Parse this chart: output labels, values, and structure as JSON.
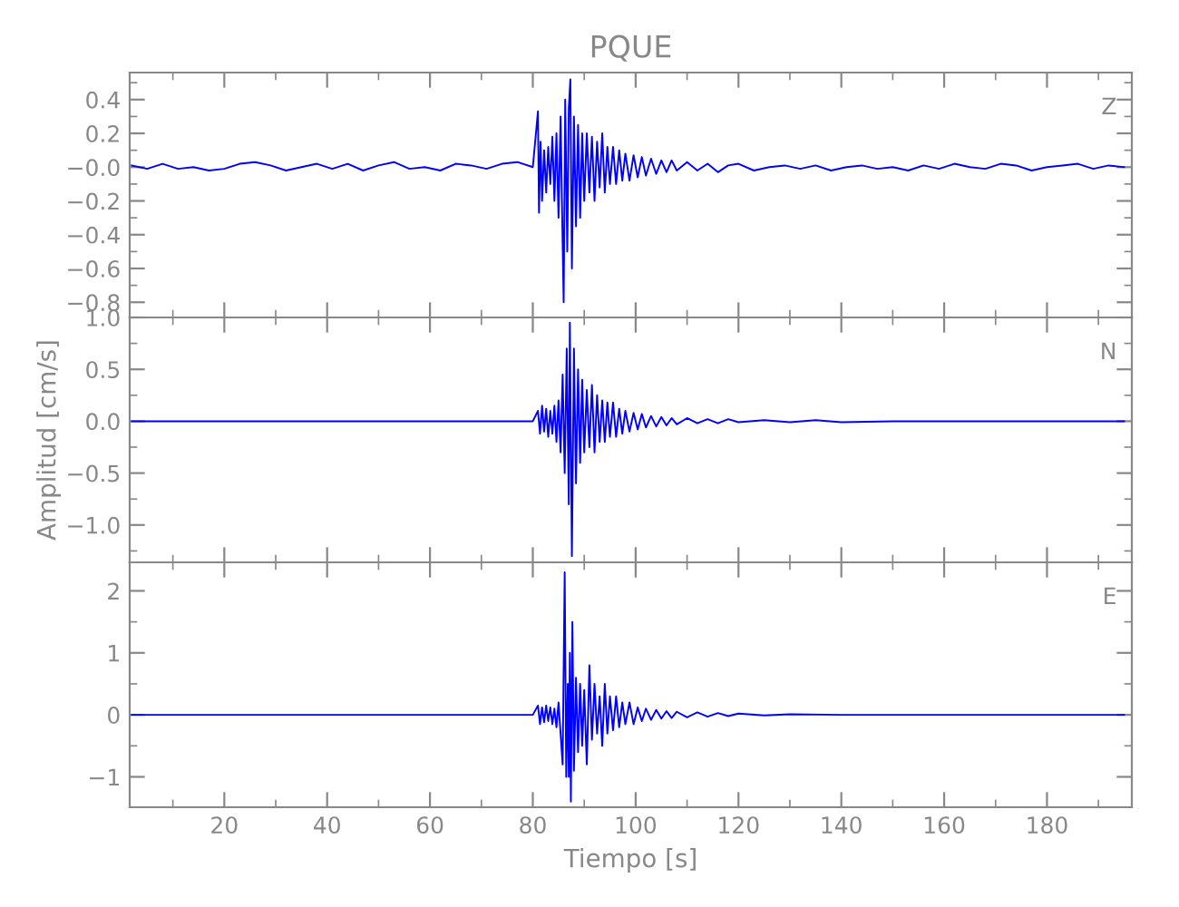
{
  "chart_data": [
    {
      "type": "line",
      "title": "PQUE",
      "annotations": [
        "Z"
      ],
      "xlim": [
        1.6,
        196.5
      ],
      "xticks": [
        20,
        40,
        60,
        80,
        100,
        120,
        140,
        160,
        180
      ],
      "ylim": [
        -0.89,
        0.56
      ],
      "yticks": [
        {
          "value": -0.8,
          "label": "−0.8"
        },
        {
          "value": -0.6,
          "label": "−0.6"
        },
        {
          "value": -0.4,
          "label": "−0.4"
        },
        {
          "value": -0.2,
          "label": "−0.2"
        },
        {
          "value": 0,
          "label": "−0.0"
        },
        {
          "value": 0.2,
          "label": "0.2"
        },
        {
          "value": 0.4,
          "label": "0.4"
        }
      ],
      "tick_labels": "y",
      "series": [
        {
          "color": "#0000ff",
          "x": [
            2,
            5,
            8,
            11,
            14,
            17,
            20,
            23,
            26,
            29,
            32,
            35,
            38,
            41,
            44,
            47,
            50,
            53,
            56,
            59,
            62,
            65,
            68,
            71,
            74,
            77,
            80,
            81.0,
            81.2,
            81.5,
            81.8,
            82.2,
            82.6,
            83.0,
            83.4,
            83.8,
            84.2,
            84.6,
            85.0,
            85.4,
            85.8,
            86.0,
            86.3,
            86.7,
            87.0,
            87.3,
            87.6,
            88.0,
            88.4,
            88.8,
            89.2,
            89.6,
            90.0,
            90.5,
            91.0,
            91.5,
            92.0,
            92.5,
            93.0,
            93.5,
            94.0,
            94.5,
            95.0,
            95.6,
            96.2,
            96.8,
            97.4,
            98,
            98.8,
            99.6,
            100.4,
            101.2,
            102,
            103,
            104,
            105,
            106,
            107,
            108,
            110,
            112,
            114,
            116,
            118,
            120,
            123,
            126,
            129,
            132,
            135,
            138,
            141,
            144,
            147,
            150,
            153,
            156,
            159,
            162,
            165,
            168,
            171,
            174,
            177,
            180,
            183,
            186,
            189,
            192,
            195
          ],
          "values": [
            0.01,
            -0.01,
            0.02,
            -0.01,
            0.0,
            -0.02,
            -0.01,
            0.02,
            0.03,
            0.01,
            -0.02,
            0.0,
            0.02,
            -0.01,
            0.02,
            -0.02,
            0.01,
            0.03,
            -0.01,
            0.0,
            -0.02,
            0.02,
            0.01,
            -0.01,
            0.02,
            0.03,
            0.0,
            0.33,
            -0.27,
            0.15,
            -0.2,
            0.1,
            -0.15,
            0.12,
            -0.1,
            0.18,
            -0.2,
            0.2,
            -0.3,
            0.3,
            -0.45,
            -0.8,
            0.4,
            -0.5,
            0.35,
            0.52,
            -0.6,
            0.3,
            -0.35,
            0.25,
            -0.3,
            0.2,
            -0.2,
            0.2,
            -0.15,
            0.18,
            -0.2,
            0.15,
            -0.12,
            0.2,
            -0.15,
            0.12,
            -0.1,
            0.12,
            -0.1,
            0.1,
            -0.08,
            0.08,
            -0.08,
            0.07,
            -0.06,
            0.06,
            -0.05,
            0.05,
            -0.04,
            0.04,
            -0.03,
            0.04,
            -0.02,
            0.03,
            -0.02,
            0.02,
            -0.03,
            0.01,
            0.02,
            -0.02,
            0.0,
            0.01,
            -0.01,
            0.01,
            -0.02,
            0.0,
            0.01,
            -0.01,
            0.0,
            -0.02,
            0.01,
            -0.01,
            0.02,
            0.0,
            -0.01,
            0.02,
            0.01,
            -0.02,
            0.0,
            0.01,
            0.02,
            -0.01,
            0.01,
            0.0
          ]
        }
      ]
    },
    {
      "type": "line",
      "ylabel": "Amplitud [cm/s]",
      "annotations": [
        "N"
      ],
      "xlim": [
        1.6,
        196.5
      ],
      "xticks": [
        20,
        40,
        60,
        80,
        100,
        120,
        140,
        160,
        180
      ],
      "ylim": [
        -1.36,
        1.0
      ],
      "yticks": [
        {
          "value": -1.0,
          "label": "−1.0"
        },
        {
          "value": -0.5,
          "label": "−0.5"
        },
        {
          "value": 0,
          "label": "0.0"
        },
        {
          "value": 0.5,
          "label": "0.5"
        },
        {
          "value": 1.0,
          "label": "1.0"
        }
      ],
      "tick_labels": "y",
      "series": [
        {
          "color": "#0000ff",
          "x": [
            2,
            20,
            40,
            60,
            80,
            81,
            81.4,
            81.8,
            82.2,
            82.6,
            83,
            83.4,
            83.8,
            84.2,
            84.6,
            85,
            85.4,
            85.8,
            86.2,
            86.6,
            87.0,
            87.2,
            87.6,
            88.0,
            88.4,
            88.8,
            89.2,
            89.6,
            90,
            90.5,
            91,
            91.5,
            92,
            92.5,
            93,
            93.5,
            94,
            94.5,
            95,
            95.6,
            96.2,
            96.8,
            97.4,
            98,
            98.8,
            99.6,
            100.4,
            101.2,
            102,
            103,
            104,
            105,
            106,
            107,
            108,
            110,
            112,
            114,
            116,
            118,
            120,
            125,
            130,
            135,
            140,
            150,
            170,
            195
          ],
          "values": [
            0,
            0,
            0,
            0,
            0,
            0.1,
            -0.12,
            0.15,
            -0.1,
            0.12,
            -0.15,
            0.1,
            -0.12,
            0.15,
            -0.2,
            0.2,
            -0.3,
            0.45,
            -0.5,
            0.7,
            -0.8,
            0.95,
            -1.3,
            0.7,
            -0.6,
            0.5,
            -0.4,
            0.4,
            -0.3,
            0.3,
            -0.25,
            0.35,
            -0.3,
            0.25,
            -0.2,
            0.2,
            -0.2,
            0.18,
            -0.15,
            0.18,
            -0.15,
            0.12,
            -0.12,
            0.1,
            -0.1,
            0.08,
            -0.08,
            0.07,
            -0.06,
            0.05,
            -0.05,
            0.04,
            -0.04,
            0.03,
            -0.03,
            0.03,
            -0.02,
            0.02,
            -0.02,
            0.02,
            -0.01,
            0.01,
            -0.01,
            0.01,
            -0.01,
            0,
            0,
            0
          ]
        }
      ]
    },
    {
      "type": "line",
      "xlabel": "Tiempo [s]",
      "annotations": [
        "E"
      ],
      "xlim": [
        1.6,
        196.5
      ],
      "xticks": [
        20,
        40,
        60,
        80,
        100,
        120,
        140,
        160,
        180
      ],
      "ylim": [
        -1.49,
        2.46
      ],
      "yticks": [
        {
          "value": -1,
          "label": "−1"
        },
        0,
        1,
        2
      ],
      "series": [
        {
          "color": "#0000ff",
          "x": [
            2,
            20,
            40,
            60,
            80,
            81,
            81.4,
            81.8,
            82.2,
            82.6,
            83,
            83.4,
            83.8,
            84.2,
            84.6,
            85,
            85.4,
            85.8,
            86.2,
            86.5,
            86.8,
            87.0,
            87.2,
            87.4,
            87.7,
            88.0,
            88.4,
            88.8,
            89.2,
            89.6,
            90,
            90.5,
            91,
            91.5,
            92,
            92.5,
            93,
            93.5,
            94,
            94.5,
            95,
            95.6,
            96.2,
            96.8,
            97.4,
            98,
            98.8,
            99.6,
            100.4,
            101.2,
            102,
            103,
            104,
            105,
            106,
            107,
            108,
            110,
            112,
            114,
            116,
            118,
            120,
            125,
            130,
            140,
            160,
            195
          ],
          "values": [
            0,
            0,
            0,
            0,
            0,
            0.15,
            -0.15,
            0.12,
            -0.12,
            0.15,
            -0.1,
            0.12,
            -0.15,
            0.1,
            -0.2,
            0.2,
            -0.3,
            -0.8,
            2.3,
            -1.0,
            0.5,
            -1.0,
            1.0,
            -1.4,
            1.5,
            -0.9,
            0.6,
            -0.6,
            0.5,
            -0.5,
            0.4,
            -0.8,
            0.8,
            -0.4,
            0.5,
            -0.3,
            0.3,
            -0.5,
            0.5,
            -0.3,
            0.3,
            -0.25,
            0.3,
            -0.2,
            0.2,
            -0.15,
            0.2,
            -0.15,
            0.12,
            -0.1,
            0.1,
            -0.08,
            0.08,
            -0.06,
            0.06,
            -0.05,
            0.05,
            -0.04,
            0.04,
            -0.03,
            0.03,
            -0.02,
            0.02,
            -0.01,
            0.01,
            0,
            0,
            0
          ]
        }
      ]
    }
  ]
}
